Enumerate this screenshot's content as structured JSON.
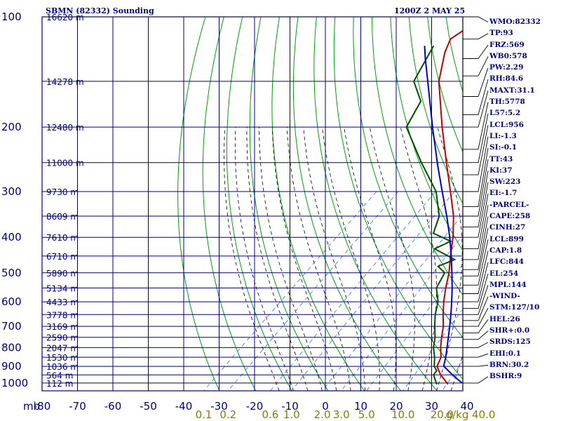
{
  "header": {
    "station": "SBMN (82332) Sounding",
    "time": "1200Z  2 MAY 25"
  },
  "indices": [
    "WMO:82332",
    "TP:93",
    "FRZ:569",
    "WB0:578",
    "PW:2.29",
    "RH:84.6",
    "MAXT:31.1",
    "TH:5778",
    "L57:5.2",
    "LCL:956",
    "LI:-1.3",
    "SI:-0.1",
    "TT:43",
    "KI:37",
    "SW:223",
    "EI:-1.7",
    "-PARCEL-",
    "CAPE:258",
    "CINH:27",
    "LCL:899",
    "CAP:1.8",
    "LFC:844",
    "EL:254",
    "MPL:144",
    "-WIND-",
    "STM:127/10",
    "HEL:26",
    "SHR+:0.0",
    "SRDS:125",
    "EHI:0.1",
    "BRN:30.2",
    "BSHR:9"
  ],
  "colors": {
    "grid": "#000080",
    "dry_adiabat": "#00a000",
    "moist_adiabat": "#000000",
    "mixing_ratio": "#4080ff",
    "temperature": "#c00000",
    "dewpoint": "#005000",
    "parcel": "#0000c0",
    "mixing_label": "#808000"
  },
  "chart_data": {
    "type": "skew-t",
    "title": "SBMN (82332) Sounding",
    "subtitle": "1200Z  2 MAY 25",
    "pressure_unit_label": "mb",
    "pressure_levels": [
      100,
      200,
      300,
      400,
      500,
      600,
      700,
      800,
      900,
      1000
    ],
    "pressure_labels": [
      "100",
      "200",
      "300",
      "400",
      "500",
      "600",
      "700",
      "800",
      "900",
      "1000"
    ],
    "temperature_ticks": [
      -80,
      -70,
      -60,
      -50,
      -40,
      -30,
      -20,
      -10,
      0,
      10,
      20,
      30,
      40
    ],
    "temperature_labels": [
      "-80",
      "-70",
      "-60",
      "-50",
      "-40",
      "-30",
      "-20",
      "-10",
      "0",
      "10",
      "20",
      "30",
      "40"
    ],
    "height_labels": [
      {
        "p": 100,
        "label": "16620 m"
      },
      {
        "p": 150,
        "label": "14278 m"
      },
      {
        "p": 200,
        "label": "12480 m"
      },
      {
        "p": 250,
        "label": "11000 m"
      },
      {
        "p": 300,
        "label": "9730 m"
      },
      {
        "p": 350,
        "label": "8609 m"
      },
      {
        "p": 400,
        "label": "7610 m"
      },
      {
        "p": 450,
        "label": "6710 m"
      },
      {
        "p": 500,
        "label": "5890 m"
      },
      {
        "p": 550,
        "label": "5134 m"
      },
      {
        "p": 600,
        "label": "4433 m"
      },
      {
        "p": 650,
        "label": "3778 m"
      },
      {
        "p": 700,
        "label": "3169 m"
      },
      {
        "p": 750,
        "label": "2590 m"
      },
      {
        "p": 800,
        "label": "2047 m"
      },
      {
        "p": 850,
        "label": "1530 m"
      },
      {
        "p": 900,
        "label": "1036 m"
      },
      {
        "p": 950,
        "label": "564 m"
      },
      {
        "p": 1000,
        "label": "112 m"
      }
    ],
    "mixing_ratio_labels": [
      {
        "w": 0.1,
        "label": "0.1"
      },
      {
        "w": 0.2,
        "label": "0.2"
      },
      {
        "w": 0.6,
        "label": "0.6"
      },
      {
        "w": 1.0,
        "label": "1.0"
      },
      {
        "w": 2.0,
        "label": "2.0"
      },
      {
        "w": 3.0,
        "label": "3.0"
      },
      {
        "w": 5.0,
        "label": "5.0"
      },
      {
        "w": 10.0,
        "label": "10.0"
      },
      {
        "w": 20.0,
        "label": "20.0"
      },
      {
        "w": 40.0,
        "label": "40.0"
      }
    ],
    "mixing_ratio_unit": "g/kg",
    "series": [
      {
        "name": "temperature",
        "points": [
          {
            "p": 1008,
            "t": 25.2
          },
          {
            "p": 1000,
            "t": 24.6
          },
          {
            "p": 950,
            "t": 20.4
          },
          {
            "p": 925,
            "t": 18.6
          },
          {
            "p": 900,
            "t": 16.8
          },
          {
            "p": 850,
            "t": 15.2
          },
          {
            "p": 800,
            "t": 12.2
          },
          {
            "p": 750,
            "t": 9.4
          },
          {
            "p": 700,
            "t": 6.6
          },
          {
            "p": 650,
            "t": 3.0
          },
          {
            "p": 600,
            "t": -0.6
          },
          {
            "p": 550,
            "t": -4.2
          },
          {
            "p": 500,
            "t": -7.8
          },
          {
            "p": 450,
            "t": -12.4
          },
          {
            "p": 400,
            "t": -17.3
          },
          {
            "p": 350,
            "t": -23.5
          },
          {
            "p": 300,
            "t": -31.7
          },
          {
            "p": 250,
            "t": -41.5
          },
          {
            "p": 200,
            "t": -53.3
          },
          {
            "p": 150,
            "t": -67.9
          },
          {
            "p": 125,
            "t": -74.9
          },
          {
            "p": 115,
            "t": -77.3
          },
          {
            "p": 100,
            "t": -74.7
          }
        ]
      },
      {
        "name": "dewpoint",
        "points": [
          {
            "p": 1008,
            "t": 22.2
          },
          {
            "p": 1000,
            "t": 21.6
          },
          {
            "p": 950,
            "t": 18.4
          },
          {
            "p": 925,
            "t": 18.0
          },
          {
            "p": 900,
            "t": 16.0
          },
          {
            "p": 850,
            "t": 13.4
          },
          {
            "p": 800,
            "t": 10.2
          },
          {
            "p": 750,
            "t": 7.6
          },
          {
            "p": 700,
            "t": 4.2
          },
          {
            "p": 650,
            "t": 0.8
          },
          {
            "p": 600,
            "t": -2.2
          },
          {
            "p": 550,
            "t": -6.8
          },
          {
            "p": 500,
            "t": -9.0
          },
          {
            "p": 480,
            "t": -12.8
          },
          {
            "p": 460,
            "t": -10.2
          },
          {
            "p": 430,
            "t": -19.0
          },
          {
            "p": 410,
            "t": -16.8
          },
          {
            "p": 390,
            "t": -24.0
          },
          {
            "p": 350,
            "t": -27.5
          },
          {
            "p": 300,
            "t": -35.7
          },
          {
            "p": 250,
            "t": -48.5
          },
          {
            "p": 200,
            "t": -63.3
          },
          {
            "p": 170,
            "t": -67.0
          },
          {
            "p": 150,
            "t": -74.9
          },
          {
            "p": 120,
            "t": -80.0
          }
        ]
      },
      {
        "name": "parcel",
        "points": [
          {
            "p": 1000,
            "t": 28.8
          },
          {
            "p": 950,
            "t": 23.7
          },
          {
            "p": 899,
            "t": 18.6
          },
          {
            "p": 850,
            "t": 16.5
          },
          {
            "p": 800,
            "t": 14.0
          },
          {
            "p": 750,
            "t": 11.3
          },
          {
            "p": 700,
            "t": 8.4
          },
          {
            "p": 650,
            "t": 5.2
          },
          {
            "p": 600,
            "t": 1.6
          },
          {
            "p": 550,
            "t": -2.4
          },
          {
            "p": 500,
            "t": -7.0
          },
          {
            "p": 450,
            "t": -12.2
          },
          {
            "p": 400,
            "t": -18.2
          },
          {
            "p": 350,
            "t": -25.4
          },
          {
            "p": 300,
            "t": -34.0
          },
          {
            "p": 254,
            "t": -43.2
          },
          {
            "p": 200,
            "t": -56.0
          },
          {
            "p": 150,
            "t": -71.0
          },
          {
            "p": 130,
            "t": -78.5
          },
          {
            "p": 120,
            "t": -82.5
          }
        ]
      }
    ]
  }
}
